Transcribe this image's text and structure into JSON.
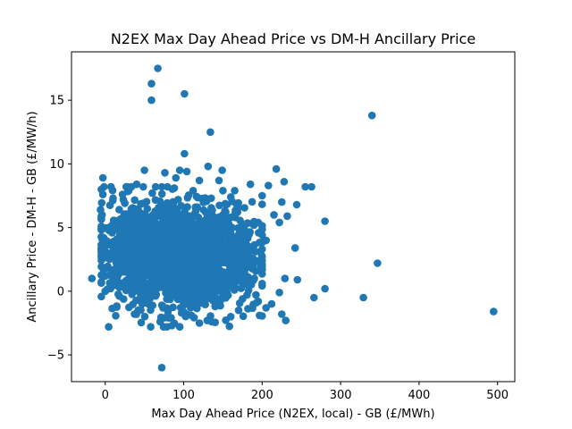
{
  "chart_data": {
    "type": "scatter",
    "title": "N2EX Max Day Ahead Price vs DM-H Ancillary Price",
    "xlabel": "Max Day Ahead Price (N2EX, local) - GB (£/MWh)",
    "ylabel": "Ancillary Price - DM-H - GB (£/MW/h)",
    "xlim": [
      -43,
      522
    ],
    "ylim": [
      -7.1,
      18.8
    ],
    "xticks": [
      0,
      100,
      200,
      300,
      400,
      500
    ],
    "yticks": [
      -5,
      0,
      5,
      10,
      15
    ],
    "xtick_labels": [
      "0",
      "100",
      "200",
      "300",
      "400",
      "500"
    ],
    "ytick_labels": [
      "−5",
      "0",
      "5",
      "10",
      "15"
    ],
    "grid": false,
    "marker_color": "#1f77b4",
    "points": [
      [
        -17,
        1.0
      ],
      [
        0,
        0.0
      ],
      [
        -3,
        8.9
      ],
      [
        -5,
        8.0
      ],
      [
        -3,
        7.6
      ],
      [
        -6,
        6.4
      ],
      [
        -4,
        6.0
      ],
      [
        -5,
        4.9
      ],
      [
        -2,
        4.2
      ],
      [
        -1,
        3.6
      ],
      [
        -3,
        2.7
      ],
      [
        -1,
        1.8
      ],
      [
        67,
        17.5
      ],
      [
        59,
        16.3
      ],
      [
        59,
        15.0
      ],
      [
        101,
        15.5
      ],
      [
        134,
        12.5
      ],
      [
        101,
        10.8
      ],
      [
        50,
        9.5
      ],
      [
        76,
        9.3
      ],
      [
        95,
        9.5
      ],
      [
        104,
        9.4
      ],
      [
        131,
        9.8
      ],
      [
        149,
        9.5
      ],
      [
        218,
        9.6
      ],
      [
        255,
        8.2
      ],
      [
        263,
        8.2
      ],
      [
        228,
        8.6
      ],
      [
        340,
        13.8
      ],
      [
        244,
        6.8
      ],
      [
        232,
        5.9
      ],
      [
        280,
        5.5
      ],
      [
        242,
        3.4
      ],
      [
        347,
        2.2
      ],
      [
        229,
        1.0
      ],
      [
        245,
        0.9
      ],
      [
        280,
        0.2
      ],
      [
        266,
        -0.5
      ],
      [
        329,
        -0.5
      ],
      [
        495,
        -1.6
      ],
      [
        230,
        -2.3
      ],
      [
        225,
        -1.8
      ],
      [
        222,
        -0.1
      ],
      [
        212,
        -1.0
      ],
      [
        205,
        -1.3
      ],
      [
        72,
        -6.0
      ],
      [
        95,
        -2.8
      ],
      [
        85,
        -2.7
      ],
      [
        70,
        -2.4
      ],
      [
        120,
        -2.5
      ],
      [
        130,
        -2.3
      ],
      [
        160,
        -2.0
      ],
      [
        170,
        -1.5
      ],
      [
        195,
        -0.8
      ],
      [
        200,
        0.6
      ],
      [
        198,
        2.1
      ],
      [
        205,
        4.0
      ],
      [
        195,
        5.4
      ],
      [
        215,
        6.0
      ],
      [
        222,
        5.4
      ],
      [
        225,
        7.0
      ],
      [
        208,
        8.3
      ],
      [
        200,
        7.5
      ],
      [
        185,
        8.4
      ],
      [
        165,
        7.9
      ],
      [
        145,
        8.7
      ],
      [
        120,
        8.7
      ],
      [
        90,
        8.9
      ],
      [
        30,
        7.9
      ],
      [
        40,
        8.4
      ],
      [
        25,
        6.9
      ],
      [
        22,
        7.6
      ],
      [
        10,
        7.3
      ],
      [
        20,
        5.6
      ],
      [
        5,
        5.0
      ],
      [
        15,
        2.5
      ],
      [
        8,
        1.2
      ],
      [
        18,
        0.3
      ],
      [
        30,
        0.9
      ],
      [
        35,
        -0.1
      ],
      [
        45,
        -0.5
      ],
      [
        55,
        -1.0
      ],
      [
        80,
        -1.6
      ],
      [
        110,
        -1.9
      ],
      [
        140,
        -1.2
      ],
      [
        175,
        -0.6
      ],
      [
        190,
        1.0
      ],
      [
        185,
        3.2
      ],
      [
        178,
        4.8
      ],
      [
        170,
        6.6
      ],
      [
        160,
        7.4
      ],
      [
        150,
        7.9
      ],
      [
        135,
        7.3
      ],
      [
        60,
        7.7
      ],
      [
        48,
        6.9
      ],
      [
        12,
        3.8
      ],
      [
        3,
        3.0
      ],
      [
        28,
        4.2
      ],
      [
        38,
        2.2
      ],
      [
        60,
        0.2
      ],
      [
        100,
        -1.1
      ],
      [
        150,
        -0.4
      ],
      [
        180,
        2.4
      ],
      [
        170,
        4.0
      ],
      [
        160,
        5.8
      ],
      [
        88,
        8.1
      ],
      [
        112,
        7.9
      ],
      [
        128,
        6.2
      ],
      [
        75,
        6.8
      ],
      [
        65,
        5.3
      ],
      [
        90,
        4.6
      ],
      [
        110,
        3.8
      ],
      [
        130,
        2.5
      ],
      [
        140,
        1.7
      ],
      [
        120,
        0.9
      ],
      [
        95,
        1.5
      ],
      [
        75,
        2.9
      ],
      [
        85,
        3.5
      ],
      [
        105,
        5.1
      ],
      [
        125,
        4.7
      ],
      [
        145,
        3.9
      ],
      [
        155,
        2.8
      ],
      [
        100,
        2.2
      ],
      [
        70,
        1.0
      ],
      [
        50,
        3.1
      ],
      [
        58,
        4.4
      ],
      [
        80,
        5.9
      ],
      [
        115,
        6.6
      ],
      [
        140,
        5.6
      ],
      [
        160,
        4.6
      ],
      [
        92,
        0.6
      ],
      [
        118,
        -0.4
      ],
      [
        132,
        0.3
      ],
      [
        150,
        0.6
      ],
      [
        165,
        1.3
      ]
    ],
    "clusters": [
      {
        "cx": 95,
        "cy": 2.9,
        "sx": 36,
        "sy": 1.9,
        "n": 1100
      },
      {
        "cx": 40,
        "cy": 3.2,
        "sx": 28,
        "sy": 2.1,
        "n": 350
      },
      {
        "cx": 150,
        "cy": 2.6,
        "sx": 28,
        "sy": 2.1,
        "n": 350
      }
    ]
  }
}
